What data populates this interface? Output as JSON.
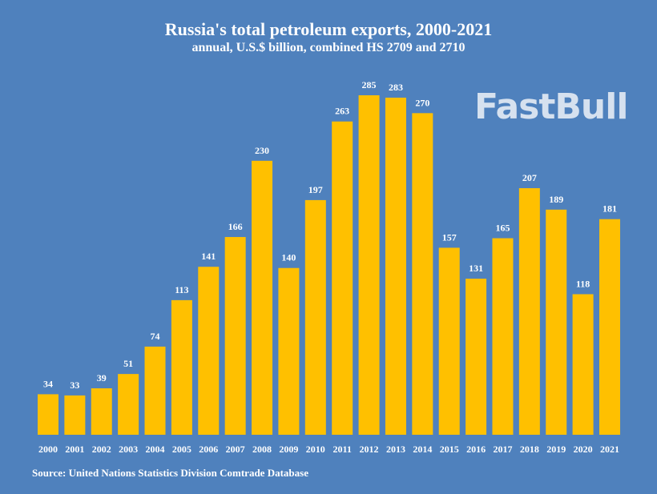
{
  "chart_data": {
    "type": "bar",
    "title": "Russia's total petroleum exports, 2000-2021",
    "subtitle": "annual, U.S.$ billion, combined HS 2709 and 2710",
    "categories": [
      "2000",
      "2001",
      "2002",
      "2003",
      "2004",
      "2005",
      "2006",
      "2007",
      "2008",
      "2009",
      "2010",
      "2011",
      "2012",
      "2013",
      "2014",
      "2015",
      "2016",
      "2017",
      "2018",
      "2019",
      "2020",
      "2021"
    ],
    "values": [
      34,
      33,
      39,
      51,
      74,
      113,
      141,
      166,
      230,
      140,
      197,
      263,
      285,
      283,
      270,
      157,
      131,
      165,
      207,
      189,
      118,
      181
    ],
    "xlabel": "",
    "ylabel": "",
    "ylim": [
      0,
      285
    ],
    "grid": false,
    "data_labels": true,
    "bar_color": "#ffc000",
    "background_color": "#4f81bd"
  },
  "source": "Source: United Nations Statistics Division Comtrade Database",
  "watermark": "FastBull"
}
